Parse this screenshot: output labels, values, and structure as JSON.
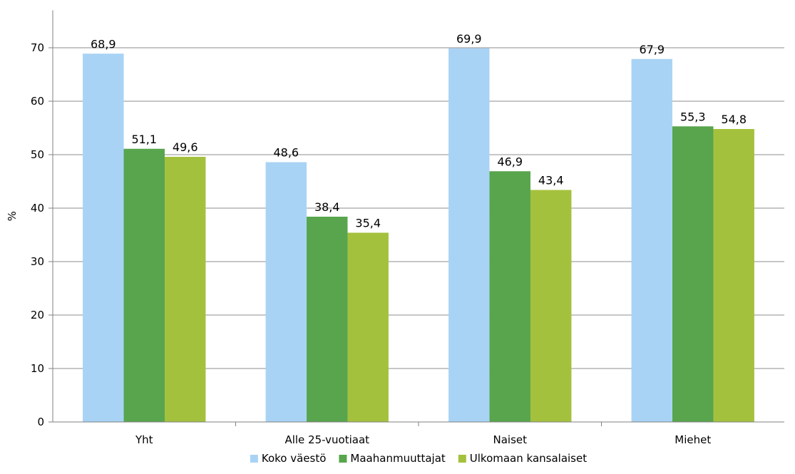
{
  "chart_data": {
    "type": "bar",
    "categories": [
      "Yht",
      "Alle 25-vuotiaat",
      "Naiset",
      "Miehet"
    ],
    "series": [
      {
        "name": "Koko väestö",
        "values": [
          68.9,
          48.6,
          69.9,
          67.9
        ],
        "labels": [
          "68,9",
          "48,6",
          "69,9",
          "67,9"
        ],
        "color": "#a9d3f5"
      },
      {
        "name": "Maahanmuuttajat",
        "values": [
          51.1,
          38.4,
          46.9,
          55.3
        ],
        "labels": [
          "51,1",
          "38,4",
          "46,9",
          "55,3"
        ],
        "color": "#58a54d"
      },
      {
        "name": "Ulkomaan kansalaiset",
        "values": [
          49.6,
          35.4,
          43.4,
          54.8
        ],
        "labels": [
          "49,6",
          "35,4",
          "43,4",
          "54,8"
        ],
        "color": "#a4c13e"
      }
    ],
    "ylabel": "%",
    "ylim": [
      0,
      77
    ],
    "yticks": [
      0,
      10,
      20,
      30,
      40,
      50,
      60,
      70
    ],
    "grid": true,
    "legend_position": "bottom",
    "grid_color": "#8c8c8c",
    "axis_color": "#808080"
  }
}
